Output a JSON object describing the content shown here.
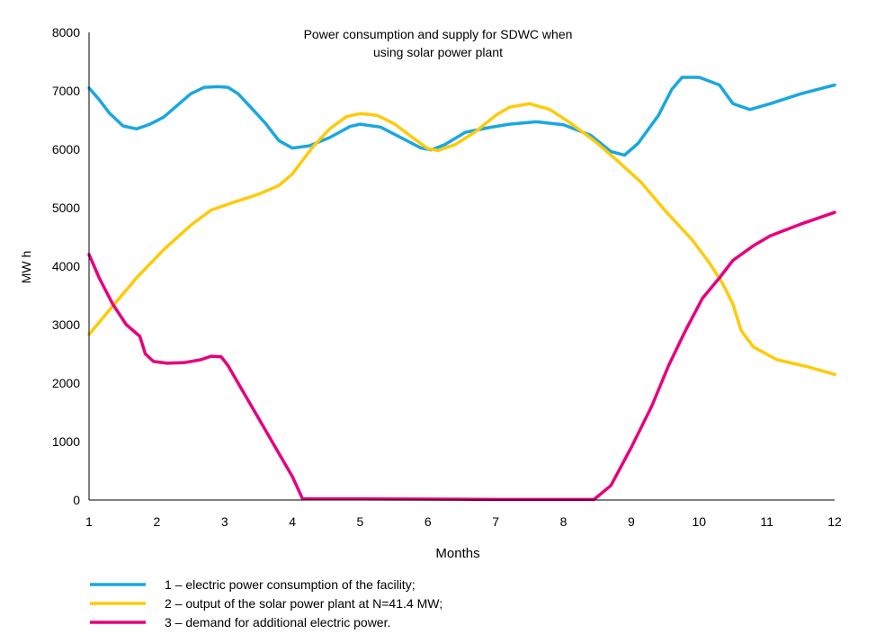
{
  "chart_data": {
    "type": "line",
    "title": "Power consumption and supply for SDWC when using solar power plant",
    "title_lines": [
      "Power consumption and supply for SDWC when",
      "using solar power plant"
    ],
    "xlabel": "Months",
    "ylabel": "MW h",
    "xlim": [
      1,
      12
    ],
    "ylim": [
      0,
      8000
    ],
    "x_ticks": [
      1,
      2,
      3,
      4,
      5,
      6,
      7,
      8,
      9,
      10,
      11,
      12
    ],
    "y_ticks": [
      0,
      1000,
      2000,
      3000,
      4000,
      5000,
      6000,
      7000,
      8000
    ],
    "grid": false,
    "legend_position": "bottom",
    "series": [
      {
        "name": "1 – electric power consumption of the facility;",
        "color": "#1aa7e0",
        "points": [
          [
            1,
            7050
          ],
          [
            1.15,
            6850
          ],
          [
            1.3,
            6620
          ],
          [
            1.5,
            6400
          ],
          [
            1.7,
            6350
          ],
          [
            1.9,
            6430
          ],
          [
            2.1,
            6550
          ],
          [
            2.3,
            6750
          ],
          [
            2.5,
            6950
          ],
          [
            2.7,
            7060
          ],
          [
            2.9,
            7070
          ],
          [
            3.05,
            7060
          ],
          [
            3.2,
            6950
          ],
          [
            3.4,
            6700
          ],
          [
            3.6,
            6450
          ],
          [
            3.8,
            6150
          ],
          [
            4.0,
            6020
          ],
          [
            4.25,
            6060
          ],
          [
            4.55,
            6200
          ],
          [
            4.85,
            6390
          ],
          [
            5.0,
            6430
          ],
          [
            5.3,
            6380
          ],
          [
            5.6,
            6200
          ],
          [
            5.9,
            6020
          ],
          [
            6.05,
            5990
          ],
          [
            6.25,
            6080
          ],
          [
            6.55,
            6290
          ],
          [
            6.9,
            6370
          ],
          [
            7.2,
            6430
          ],
          [
            7.6,
            6470
          ],
          [
            8.0,
            6420
          ],
          [
            8.4,
            6240
          ],
          [
            8.7,
            5960
          ],
          [
            8.9,
            5900
          ],
          [
            9.1,
            6100
          ],
          [
            9.4,
            6580
          ],
          [
            9.6,
            7030
          ],
          [
            9.75,
            7230
          ],
          [
            10.0,
            7230
          ],
          [
            10.3,
            7100
          ],
          [
            10.5,
            6780
          ],
          [
            10.75,
            6680
          ],
          [
            11.05,
            6780
          ],
          [
            11.5,
            6950
          ],
          [
            12.0,
            7100
          ]
        ]
      },
      {
        "name": "2 – output of the solar power plant at N=41.4 MW;",
        "color": "#ffca0a",
        "points": [
          [
            1,
            2830
          ],
          [
            1.3,
            3250
          ],
          [
            1.7,
            3800
          ],
          [
            2.1,
            4280
          ],
          [
            2.5,
            4700
          ],
          [
            2.8,
            4960
          ],
          [
            3.1,
            5080
          ],
          [
            3.5,
            5230
          ],
          [
            3.8,
            5380
          ],
          [
            4.0,
            5580
          ],
          [
            4.3,
            6040
          ],
          [
            4.55,
            6350
          ],
          [
            4.8,
            6560
          ],
          [
            5.0,
            6610
          ],
          [
            5.25,
            6580
          ],
          [
            5.5,
            6440
          ],
          [
            5.75,
            6220
          ],
          [
            6.0,
            6010
          ],
          [
            6.15,
            5980
          ],
          [
            6.4,
            6080
          ],
          [
            6.7,
            6300
          ],
          [
            7.0,
            6580
          ],
          [
            7.2,
            6720
          ],
          [
            7.5,
            6780
          ],
          [
            7.8,
            6680
          ],
          [
            8.1,
            6450
          ],
          [
            8.45,
            6150
          ],
          [
            8.8,
            5800
          ],
          [
            9.15,
            5430
          ],
          [
            9.5,
            4950
          ],
          [
            9.9,
            4450
          ],
          [
            10.15,
            4060
          ],
          [
            10.35,
            3700
          ],
          [
            10.5,
            3350
          ],
          [
            10.62,
            2900
          ],
          [
            10.8,
            2620
          ],
          [
            11.15,
            2400
          ],
          [
            11.6,
            2280
          ],
          [
            12.0,
            2150
          ]
        ]
      },
      {
        "name": "3 – demand for additional electric power.",
        "color": "#e6007e",
        "points": [
          [
            1,
            4200
          ],
          [
            1.15,
            3800
          ],
          [
            1.35,
            3350
          ],
          [
            1.55,
            3000
          ],
          [
            1.75,
            2800
          ],
          [
            1.83,
            2500
          ],
          [
            1.95,
            2370
          ],
          [
            2.15,
            2340
          ],
          [
            2.4,
            2350
          ],
          [
            2.65,
            2400
          ],
          [
            2.8,
            2460
          ],
          [
            2.95,
            2450
          ],
          [
            3.05,
            2300
          ],
          [
            3.3,
            1800
          ],
          [
            3.55,
            1300
          ],
          [
            3.8,
            800
          ],
          [
            4.0,
            400
          ],
          [
            4.15,
            20
          ],
          [
            4.5,
            20
          ],
          [
            5.0,
            20
          ],
          [
            6.0,
            15
          ],
          [
            7.0,
            10
          ],
          [
            8.0,
            10
          ],
          [
            8.45,
            10
          ],
          [
            8.7,
            250
          ],
          [
            9.0,
            900
          ],
          [
            9.3,
            1600
          ],
          [
            9.55,
            2300
          ],
          [
            9.8,
            2900
          ],
          [
            10.05,
            3450
          ],
          [
            10.3,
            3800
          ],
          [
            10.5,
            4100
          ],
          [
            10.8,
            4350
          ],
          [
            11.05,
            4520
          ],
          [
            11.5,
            4720
          ],
          [
            12.0,
            4920
          ]
        ]
      }
    ]
  }
}
